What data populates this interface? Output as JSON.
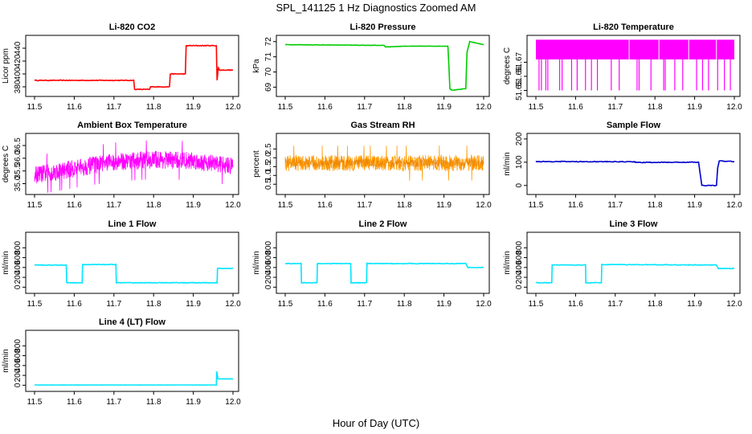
{
  "figure": {
    "title": "SPL_141125  1 Hz Diagnostics Zoomed AM",
    "xlabel": "Hour of Day (UTC)"
  },
  "chart_data": [
    {
      "type": "line",
      "title": "Li-820 CO2",
      "ylabel": "Licor ppm",
      "color": "#ff0000",
      "xlim": [
        11.5,
        12.0
      ],
      "ylim": [
        370,
        455
      ],
      "xticks": [
        "11.5",
        "11.6",
        "11.7",
        "11.8",
        "11.9",
        "12.0"
      ],
      "yticks": [
        {
          "v": 380,
          "label": "380"
        },
        {
          "v": 400,
          "label": "400"
        },
        {
          "v": 420,
          "label": "420"
        },
        {
          "v": 440,
          "label": "440"
        }
      ],
      "noise": 0.5,
      "x": [
        11.5,
        11.75,
        11.752,
        11.79,
        11.792,
        11.84,
        11.842,
        11.88,
        11.882,
        11.958,
        11.96,
        11.963,
        11.966,
        12.0
      ],
      "y": [
        390,
        390,
        376,
        376,
        380,
        380,
        400,
        400,
        444,
        444,
        390,
        410,
        406,
        406
      ]
    },
    {
      "type": "line",
      "title": "Li-820 Pressure",
      "ylabel": "kPa",
      "color": "#00cc00",
      "xlim": [
        11.5,
        12.0
      ],
      "ylim": [
        68.6,
        72.2
      ],
      "xticks": [
        "11.5",
        "11.6",
        "11.7",
        "11.8",
        "11.9",
        "12.0"
      ],
      "yticks": [
        {
          "v": 69,
          "label": "69"
        },
        {
          "v": 70,
          "label": "70"
        },
        {
          "v": 71,
          "label": "71"
        },
        {
          "v": 72,
          "label": "72"
        }
      ],
      "noise": 0.01,
      "x": [
        11.5,
        11.75,
        11.752,
        11.8,
        11.91,
        11.915,
        11.92,
        11.955,
        11.958,
        11.965,
        12.0
      ],
      "y": [
        71.8,
        71.75,
        71.65,
        71.7,
        71.7,
        68.9,
        68.8,
        68.9,
        71.3,
        72.0,
        71.8
      ]
    },
    {
      "type": "band",
      "title": "Li-820 Temperature",
      "ylabel": "degrees C",
      "color": "#ff00ff",
      "xlim": [
        11.5,
        12.0
      ],
      "ylim": [
        51.648,
        51.6868
      ],
      "xticks": [
        "11.5",
        "11.6",
        "11.7",
        "11.8",
        "11.9",
        "12.0"
      ],
      "yticks": [
        {
          "v": 51.65,
          "label": "51.65"
        },
        {
          "v": 51.66,
          "label": "51.66"
        },
        {
          "v": 51.67,
          "label": "51.67"
        }
      ],
      "band_low": 51.672,
      "band_high": 51.686,
      "spikes_to": 51.65,
      "spike_x": [
        11.508,
        11.514,
        11.525,
        11.53,
        11.56,
        11.566,
        11.59,
        11.604,
        11.625,
        11.64,
        11.655,
        11.69,
        11.71,
        11.755,
        11.76,
        11.79,
        11.822,
        11.826,
        11.85,
        11.87,
        11.905,
        11.92,
        11.935,
        11.958,
        11.975,
        11.99
      ]
    },
    {
      "type": "noisy",
      "title": "Ambient Box Temperature",
      "ylabel": "degrees C",
      "color": "#ff00ff",
      "xlim": [
        11.5,
        12.0
      ],
      "ylim": [
        34.7,
        36.85
      ],
      "xticks": [
        "11.5",
        "11.6",
        "11.7",
        "11.8",
        "11.9",
        "12.0"
      ],
      "yticks": [
        {
          "v": 35.0,
          "label": "35.0"
        },
        {
          "v": 35.5,
          "label": "35.5"
        },
        {
          "v": 36.0,
          "label": "36.0"
        },
        {
          "v": 36.5,
          "label": "36.5"
        }
      ],
      "x": [
        11.5,
        11.55,
        11.6,
        11.7,
        11.8,
        11.9,
        12.0
      ],
      "y": [
        35.35,
        35.45,
        35.6,
        35.85,
        35.95,
        35.9,
        35.7
      ],
      "spread": 0.35
    },
    {
      "type": "noisy",
      "title": "Gas Stream RH",
      "ylabel": "percent",
      "color": "#ff9900",
      "accent": "#cc6600",
      "xlim": [
        11.5,
        12.0
      ],
      "ylim": [
        0.1,
        3.2
      ],
      "xticks": [
        "11.5",
        "11.6",
        "11.7",
        "11.8",
        "11.9",
        "12.0"
      ],
      "yticks": [
        {
          "v": 0.5,
          "label": "0.5"
        },
        {
          "v": 1.0,
          "label": "1.0"
        },
        {
          "v": 1.5,
          "label": "1.5"
        },
        {
          "v": 2.0,
          "label": "2.0"
        },
        {
          "v": 2.5,
          "label": "2.5"
        }
      ],
      "x": [
        11.5,
        12.0
      ],
      "y": [
        1.7,
        1.7
      ],
      "spread": 0.45
    },
    {
      "type": "line",
      "title": "Sample Flow",
      "ylabel": "ml/min",
      "color": "#0000cc",
      "xlim": [
        11.5,
        12.0
      ],
      "ylim": [
        -25,
        210
      ],
      "xticks": [
        "11.5",
        "11.6",
        "11.7",
        "11.8",
        "11.9",
        "12.0"
      ],
      "yticks": [
        {
          "v": 0,
          "label": "0"
        },
        {
          "v": 100,
          "label": "100"
        },
        {
          "v": 200,
          "label": "200"
        }
      ],
      "noise": 1.5,
      "x": [
        11.5,
        11.75,
        11.752,
        11.91,
        11.918,
        11.955,
        11.958,
        11.962,
        12.0
      ],
      "y": [
        103,
        102,
        99,
        100,
        0,
        0,
        75,
        105,
        103
      ]
    },
    {
      "type": "line",
      "title": "Line 1 Flow",
      "ylabel": "ml/min",
      "color": "#00e5ff",
      "xlim": [
        11.5,
        12.0
      ],
      "ylim": [
        -60,
        1050
      ],
      "xticks": [
        "11.5",
        "11.6",
        "11.7",
        "11.8",
        "11.9",
        "12.0"
      ],
      "yticks": [
        {
          "v": 0,
          "label": "0"
        },
        {
          "v": 200,
          "label": "200"
        },
        {
          "v": 400,
          "label": "400"
        },
        {
          "v": 600,
          "label": "600"
        },
        {
          "v": 800,
          "label": "800"
        }
      ],
      "noise": 6,
      "x": [
        11.5,
        11.58,
        11.581,
        11.62,
        11.621,
        11.705,
        11.706,
        11.96,
        11.961,
        12.0
      ],
      "y": [
        450,
        450,
        90,
        90,
        460,
        460,
        90,
        90,
        380,
        380
      ]
    },
    {
      "type": "line",
      "title": "Line 2 Flow",
      "ylabel": "ml/min",
      "color": "#00e5ff",
      "xlim": [
        11.5,
        12.0
      ],
      "ylim": [
        -60,
        1050
      ],
      "xticks": [
        "11.5",
        "11.6",
        "11.7",
        "11.8",
        "11.9",
        "12.0"
      ],
      "yticks": [
        {
          "v": 0,
          "label": "0"
        },
        {
          "v": 200,
          "label": "200"
        },
        {
          "v": 400,
          "label": "400"
        },
        {
          "v": 600,
          "label": "600"
        },
        {
          "v": 800,
          "label": "800"
        }
      ],
      "noise": 6,
      "x": [
        11.5,
        11.54,
        11.541,
        11.58,
        11.581,
        11.665,
        11.666,
        11.705,
        11.706,
        11.955,
        11.96,
        12.0
      ],
      "y": [
        480,
        480,
        90,
        90,
        480,
        480,
        90,
        90,
        480,
        480,
        400,
        400
      ]
    },
    {
      "type": "line",
      "title": "Line 3 Flow",
      "ylabel": "ml/min",
      "color": "#00e5ff",
      "xlim": [
        11.5,
        12.0
      ],
      "ylim": [
        -60,
        1050
      ],
      "xticks": [
        "11.5",
        "11.6",
        "11.7",
        "11.8",
        "11.9",
        "12.0"
      ],
      "yticks": [
        {
          "v": 0,
          "label": "0"
        },
        {
          "v": 200,
          "label": "200"
        },
        {
          "v": 400,
          "label": "400"
        },
        {
          "v": 600,
          "label": "600"
        },
        {
          "v": 800,
          "label": "800"
        }
      ],
      "noise": 6,
      "x": [
        11.5,
        11.54,
        11.541,
        11.625,
        11.626,
        11.665,
        11.666,
        11.955,
        11.96,
        12.0
      ],
      "y": [
        90,
        90,
        450,
        450,
        90,
        90,
        460,
        450,
        380,
        380
      ]
    },
    {
      "type": "line",
      "title": "Line 4 (LT) Flow",
      "ylabel": "ml/min",
      "color": "#00e5ff",
      "xlim": [
        11.5,
        12.0
      ],
      "ylim": [
        -60,
        1050
      ],
      "xticks": [
        "11.5",
        "11.6",
        "11.7",
        "11.8",
        "11.9",
        "12.0"
      ],
      "yticks": [
        {
          "v": 0,
          "label": "0"
        },
        {
          "v": 200,
          "label": "200"
        },
        {
          "v": 400,
          "label": "400"
        },
        {
          "v": 600,
          "label": "600"
        },
        {
          "v": 800,
          "label": "800"
        }
      ],
      "noise": 1,
      "x": [
        11.5,
        11.958,
        11.959,
        11.962,
        11.963,
        12.0
      ],
      "y": [
        5,
        5,
        280,
        130,
        130,
        130
      ]
    }
  ]
}
